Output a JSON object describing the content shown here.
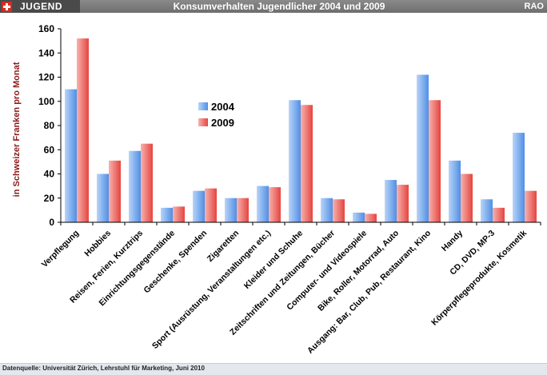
{
  "header": {
    "brand": "JUGEND",
    "title": "Konsumverhalten Jugendlicher 2004 und 2009",
    "corner": "RAO"
  },
  "footer": {
    "source": "Datenquelle: Universität Zürich, Lehrstuhl für Marketing, Juni 2010"
  },
  "colors": {
    "series_2004": "#4f8fe6",
    "series_2004_light": "#b9d4f7",
    "series_2009": "#e6443f",
    "series_2009_light": "#f7b3ae",
    "ylabel": "#8b1a1a"
  },
  "chart_data": {
    "type": "bar",
    "title": "Konsumverhalten Jugendlicher 2004 und 2009",
    "xlabel": "",
    "ylabel": "in Schweizer Franken pro Monat",
    "ylim": [
      0,
      160
    ],
    "yticks": [
      0,
      20,
      40,
      60,
      80,
      100,
      120,
      140,
      160
    ],
    "grid": false,
    "legend_position": "center-left",
    "categories": [
      "Verpflegung",
      "Hobbies",
      "Reisen, Ferien, Kurztrips",
      "Einrichtungsgegenstände",
      "Geschenke, Spenden",
      "Zigaretten",
      "Sport (Ausrüstung, Veranstaltungen etc.)",
      "Kleider und Schuhe",
      "Zeitschriften und Zeitungen, Bücher",
      "Computer- und Videospiele",
      "Bike, Roller, Motorrad, Auto",
      "Ausgang: Bar, Club, Pub, Restaurant, Kino",
      "Handy",
      "CD, DVD, MP-3",
      "Körperpflegeprodukte, Kosmetik"
    ],
    "series": [
      {
        "name": "2004",
        "values": [
          110,
          40,
          59,
          12,
          26,
          20,
          30,
          101,
          20,
          8,
          35,
          122,
          51,
          19,
          74
        ]
      },
      {
        "name": "2009",
        "values": [
          152,
          51,
          65,
          13,
          28,
          20,
          29,
          97,
          19,
          7,
          31,
          101,
          40,
          12,
          26
        ]
      }
    ]
  }
}
